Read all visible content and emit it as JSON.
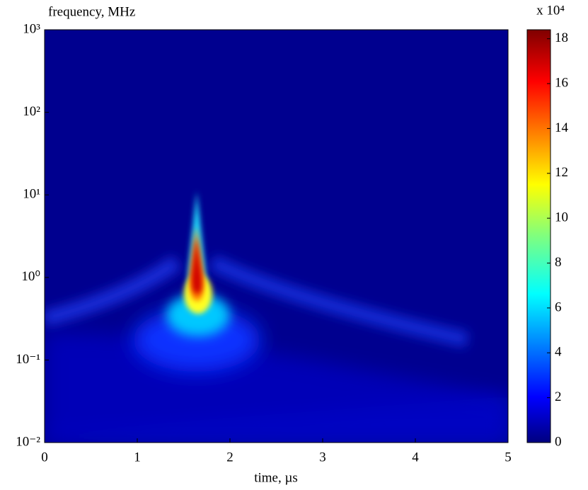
{
  "chart_data": {
    "type": "heatmap",
    "y_label": "frequency, MHz",
    "x_label": "time, µs",
    "xlim": [
      0,
      5
    ],
    "xticks": [
      0,
      1,
      2,
      3,
      4,
      5
    ],
    "ylim": [
      0.01,
      1000
    ],
    "yscale": "log",
    "yticks": [
      {
        "value": 0.01,
        "label": "10⁻²"
      },
      {
        "value": 0.1,
        "label": "10⁻¹"
      },
      {
        "value": 1,
        "label": "10⁰"
      },
      {
        "value": 10,
        "label": "10¹"
      },
      {
        "value": 100,
        "label": "10²"
      },
      {
        "value": 1000,
        "label": "10³"
      }
    ],
    "colormap": "jet",
    "colorbar_multiplier": "x 10⁴",
    "clim": [
      0,
      18.4
    ],
    "cticks": [
      0,
      2,
      4,
      6,
      8,
      10,
      12,
      14,
      16,
      18
    ]
  }
}
